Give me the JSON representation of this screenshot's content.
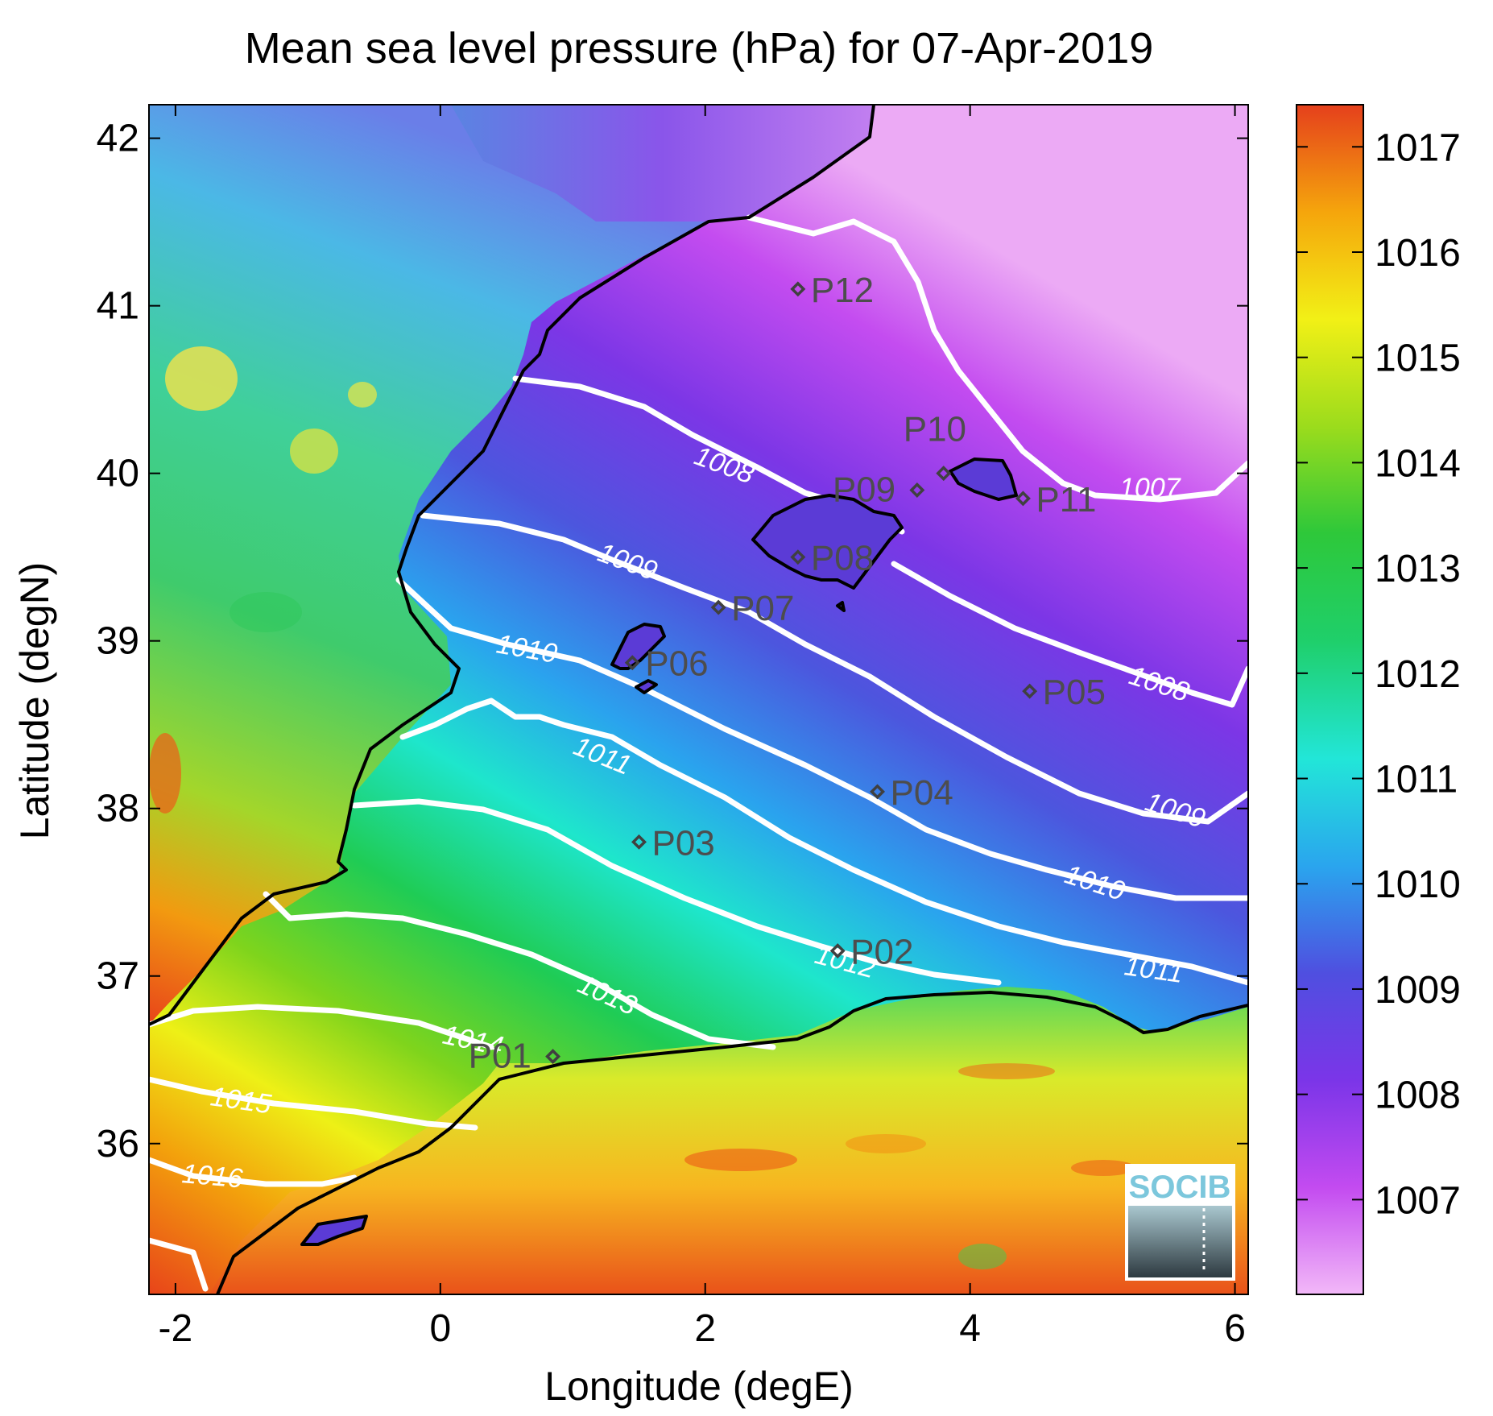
{
  "map": {
    "title": "Mean sea level pressure (hPa) for 07-Apr-2019",
    "xlabel": "Longitude (degE)",
    "ylabel": "Latitude (degN)",
    "x_range": [
      -2.2,
      6.1
    ],
    "y_range": [
      35.1,
      42.2
    ],
    "x_ticks": [
      "-2",
      "0",
      "2",
      "4",
      "6"
    ],
    "y_ticks": [
      "36",
      "37",
      "38",
      "39",
      "40",
      "41",
      "42"
    ],
    "variable": "Mean sea level pressure",
    "units": "hPa",
    "date": "07-Apr-2019"
  },
  "colorbar": {
    "range": [
      1006.1,
      1017.4
    ],
    "ticks": [
      "1007",
      "1008",
      "1009",
      "1010",
      "1011",
      "1012",
      "1013",
      "1014",
      "1015",
      "1016",
      "1017"
    ],
    "colors": [
      "#f2b6f7",
      "#c34bf0",
      "#7b35e8",
      "#3f66e0",
      "#22b8ef",
      "#21e8d0",
      "#1ecf5a",
      "#7fd21a",
      "#f0f010",
      "#f5b000",
      "#e8401a"
    ]
  },
  "contour_labels": [
    "1007",
    "1008",
    "1008",
    "1009",
    "1009",
    "1010",
    "1010",
    "1011",
    "1011",
    "1012",
    "1013",
    "1014",
    "1015",
    "1016"
  ],
  "points": [
    {
      "name": "P01",
      "lon": 0.85,
      "lat": 36.52
    },
    {
      "name": "P02",
      "lon": 3.0,
      "lat": 37.15
    },
    {
      "name": "P03",
      "lon": 1.5,
      "lat": 37.8
    },
    {
      "name": "P04",
      "lon": 3.3,
      "lat": 38.1
    },
    {
      "name": "P05",
      "lon": 4.45,
      "lat": 38.7
    },
    {
      "name": "P06",
      "lon": 1.45,
      "lat": 38.87
    },
    {
      "name": "P07",
      "lon": 2.1,
      "lat": 39.2
    },
    {
      "name": "P08",
      "lon": 2.7,
      "lat": 39.5
    },
    {
      "name": "P09",
      "lon": 3.6,
      "lat": 39.9
    },
    {
      "name": "P10",
      "lon": 3.8,
      "lat": 40.0
    },
    {
      "name": "P11",
      "lon": 4.4,
      "lat": 39.85
    },
    {
      "name": "P12",
      "lon": 2.7,
      "lat": 41.1
    }
  ],
  "logo": {
    "text": "SOCIB"
  }
}
